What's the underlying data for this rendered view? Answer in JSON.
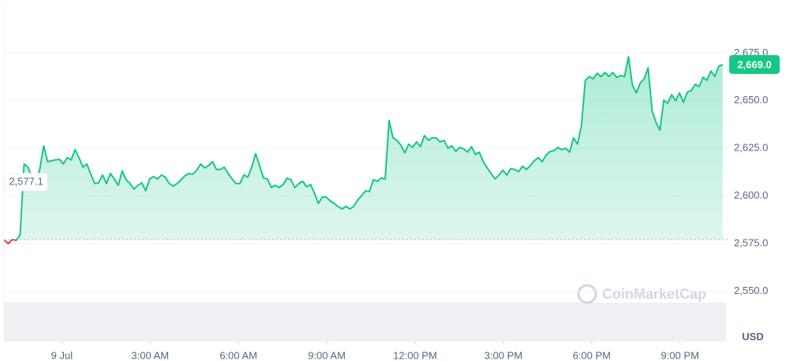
{
  "chart_data": {
    "type": "line",
    "series": [
      {
        "name": "Price",
        "color": "#16c784",
        "down_color": "#ea3943",
        "x": [
          -117,
          -109,
          -101,
          -93,
          -85,
          -77,
          -69,
          -61,
          -53,
          -45,
          -37,
          -29,
          -21,
          -13,
          -5,
          3,
          11,
          19,
          27,
          35,
          43,
          51,
          59,
          67,
          75,
          83,
          91,
          99,
          107,
          115,
          123,
          131,
          139,
          147,
          155,
          163,
          171,
          179,
          187,
          195,
          203,
          211,
          219,
          227,
          235,
          243,
          251,
          259,
          267,
          275,
          283,
          291,
          299,
          307,
          315,
          323,
          331,
          339,
          347,
          355,
          363,
          371,
          379,
          387,
          395,
          403,
          411,
          419,
          427,
          435,
          443,
          451,
          459,
          467,
          475,
          483,
          491,
          499,
          507,
          515,
          523,
          531,
          539,
          547,
          555,
          563,
          571,
          579,
          587,
          595,
          603,
          611,
          619,
          627,
          635,
          643,
          651,
          659,
          667,
          675,
          683,
          691,
          699,
          707,
          715,
          723,
          731,
          739,
          747,
          755,
          763,
          771,
          779,
          787,
          795,
          803,
          811,
          819,
          827,
          835,
          843,
          851,
          859,
          867,
          875,
          883,
          891,
          899,
          907,
          915,
          923,
          931,
          939,
          947,
          955,
          963,
          971,
          979,
          987,
          995,
          1003,
          1011,
          1019,
          1027,
          1035,
          1043,
          1051,
          1059,
          1067,
          1075,
          1083,
          1091,
          1099,
          1107,
          1115,
          1123,
          1131,
          1139,
          1147,
          1155,
          1163,
          1171,
          1179,
          1187,
          1195,
          1203,
          1211,
          1219,
          1227,
          1235,
          1243,
          1251,
          1259,
          1267,
          1275,
          1283,
          1291,
          1299,
          1307,
          1315,
          1323,
          1331,
          1339,
          1347
        ],
        "values": [
          2576.7,
          2575.0,
          2577.1,
          2576.7,
          2579.6,
          2616.8,
          2615.1,
          2609.8,
          2607.7,
          2613.9,
          2626.3,
          2618.0,
          2618.5,
          2618.9,
          2619.3,
          2616.8,
          2620.1,
          2618.9,
          2624.3,
          2620.1,
          2615.1,
          2616.8,
          2611.4,
          2606.5,
          2606.9,
          2611.0,
          2606.5,
          2611.8,
          2608.9,
          2605.6,
          2613.1,
          2608.5,
          2606.5,
          2603.6,
          2605.6,
          2606.9,
          2602.7,
          2608.9,
          2610.2,
          2608.9,
          2611.0,
          2609.8,
          2606.5,
          2605.2,
          2606.5,
          2608.5,
          2610.6,
          2611.8,
          2611.4,
          2613.5,
          2616.8,
          2614.7,
          2616.0,
          2618.0,
          2613.9,
          2613.9,
          2615.1,
          2611.8,
          2608.9,
          2606.5,
          2606.5,
          2611.0,
          2609.8,
          2615.1,
          2622.2,
          2616.0,
          2609.4,
          2608.9,
          2604.4,
          2605.6,
          2604.4,
          2606.0,
          2609.4,
          2608.5,
          2604.4,
          2606.5,
          2607.7,
          2604.8,
          2606.0,
          2601.5,
          2596.1,
          2599.4,
          2599.4,
          2597.4,
          2596.1,
          2594.5,
          2593.2,
          2594.5,
          2593.2,
          2594.5,
          2597.8,
          2600.2,
          2602.7,
          2602.3,
          2608.5,
          2607.7,
          2609.4,
          2608.9,
          2639.6,
          2630.5,
          2629.2,
          2626.7,
          2622.6,
          2627.2,
          2625.5,
          2628.4,
          2625.9,
          2631.7,
          2629.2,
          2630.5,
          2630.5,
          2628.4,
          2629.2,
          2625.1,
          2626.3,
          2623.4,
          2625.5,
          2624.7,
          2623.0,
          2625.9,
          2621.8,
          2623.0,
          2618.0,
          2614.7,
          2611.8,
          2608.9,
          2611.0,
          2613.5,
          2611.0,
          2614.3,
          2613.9,
          2612.7,
          2615.6,
          2613.9,
          2616.0,
          2618.5,
          2620.1,
          2618.0,
          2621.4,
          2623.4,
          2623.8,
          2625.5,
          2624.3,
          2625.1,
          2623.0,
          2630.5,
          2627.2,
          2636.7,
          2660.7,
          2662.7,
          2661.5,
          2664.4,
          2662.7,
          2664.8,
          2662.7,
          2664.8,
          2662.3,
          2663.2,
          2662.7,
          2673.1,
          2658.2,
          2654.1,
          2659.4,
          2661.5,
          2667.3,
          2644.9,
          2638.7,
          2634.6,
          2650.3,
          2648.7,
          2653.2,
          2649.9,
          2654.1,
          2649.1,
          2654.5,
          2655.3,
          2658.6,
          2657.4,
          2662.3,
          2660.7,
          2665.6,
          2662.7,
          2668.1,
          2669.0
        ]
      }
    ],
    "xlim": [
      -118,
      1357
    ],
    "xticks": [
      {
        "value": 0,
        "label": "9 Jul"
      },
      {
        "value": 180,
        "label": "3:00 AM"
      },
      {
        "value": 360,
        "label": "6:00 AM"
      },
      {
        "value": 540,
        "label": "9:00 AM"
      },
      {
        "value": 720,
        "label": "12:00 PM"
      },
      {
        "value": 900,
        "label": "3:00 PM"
      },
      {
        "value": 1080,
        "label": "6:00 PM"
      },
      {
        "value": 1260,
        "label": "9:00 PM"
      }
    ],
    "ylim": [
      2523.7,
      2700.8
    ],
    "yticks": [
      {
        "value": 2550,
        "label": "2,550.0"
      },
      {
        "value": 2575,
        "label": "2,575.0"
      },
      {
        "value": 2600,
        "label": "2,600.0"
      },
      {
        "value": 2625,
        "label": "2,625.0"
      },
      {
        "value": 2650,
        "label": "2,650.0"
      },
      {
        "value": 2675,
        "label": "2,675.0"
      }
    ],
    "grid": true,
    "reference_line": {
      "value": 2577.1,
      "label": "2,577.1"
    },
    "last_price": {
      "value": 2669.0,
      "label": "2,669.0"
    },
    "currency_label": "USD",
    "watermark": "CoinMarketCap"
  }
}
